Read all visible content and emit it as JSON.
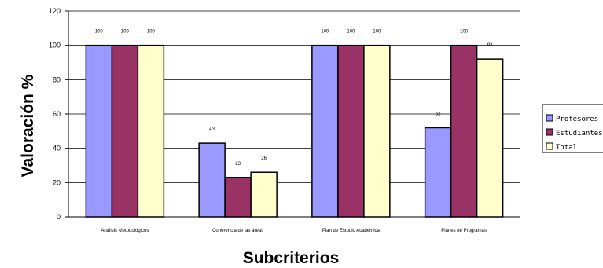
{
  "chart_data": {
    "type": "bar",
    "categories": [
      "Análisis Metodológicos",
      "Coherencia de las áreas",
      "Plan de Estudio Académica",
      "Planes de Programas"
    ],
    "series": [
      {
        "name": "Profesores",
        "values": [
          100,
          43,
          100,
          52
        ],
        "labels": [
          "100",
          "43",
          "100",
          "52"
        ],
        "color": "#9999ff"
      },
      {
        "name": "Estudiantes",
        "values": [
          100,
          23,
          100,
          100
        ],
        "labels": [
          "100",
          "23",
          "100",
          "100"
        ],
        "color": "#993366"
      },
      {
        "name": "Total",
        "values": [
          100,
          26,
          100,
          92
        ],
        "labels": [
          "100",
          "26",
          "100",
          "92"
        ],
        "color": "#ffffcc"
      }
    ],
    "yticks": [
      "0",
      "20",
      "40",
      "60",
      "80",
      "100",
      "120"
    ],
    "ylim": [
      0,
      120
    ],
    "ylabel": "Valoración %",
    "xlabel": "Subcriterios",
    "grid": true,
    "legend": "right"
  }
}
